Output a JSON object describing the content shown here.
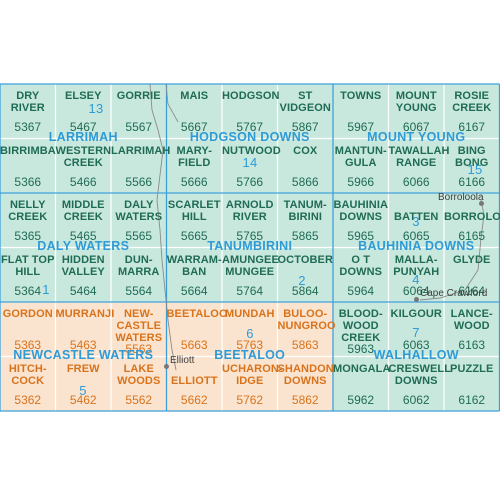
{
  "colors": {
    "teal_fill": "#c8e8de",
    "orange_fill": "#fbe4cf",
    "green_text": "#1f6b54",
    "orange_text": "#d8731c",
    "blue_text": "#2f9bd6",
    "grid_line": "#ffffff",
    "blue_line": "#3a9fd8"
  },
  "sheets": [
    {
      "row": 0,
      "col": 0,
      "lines": [
        "DRY",
        "RIVER"
      ],
      "code": "5367",
      "region": "teal"
    },
    {
      "row": 0,
      "col": 1,
      "lines": [
        "ELSEY",
        ""
      ],
      "code": "5467",
      "region": "teal"
    },
    {
      "row": 0,
      "col": 2,
      "lines": [
        "GORRIE",
        ""
      ],
      "code": "5567",
      "region": "teal"
    },
    {
      "row": 0,
      "col": 3,
      "lines": [
        "MAIS",
        ""
      ],
      "code": "5667",
      "region": "teal"
    },
    {
      "row": 0,
      "col": 4,
      "lines": [
        "HODGSON",
        ""
      ],
      "code": "5767",
      "region": "teal"
    },
    {
      "row": 0,
      "col": 5,
      "lines": [
        "ST",
        "VIDGEON"
      ],
      "code": "5867",
      "region": "teal"
    },
    {
      "row": 0,
      "col": 6,
      "lines": [
        "TOWNS",
        ""
      ],
      "code": "5967",
      "region": "teal"
    },
    {
      "row": 0,
      "col": 7,
      "lines": [
        "MOUNT",
        "YOUNG"
      ],
      "code": "6067",
      "region": "teal"
    },
    {
      "row": 0,
      "col": 8,
      "lines": [
        "ROSIE",
        "CREEK"
      ],
      "code": "6167",
      "region": "teal"
    },
    {
      "row": 1,
      "col": 0,
      "lines": [
        "BIRRIMBA",
        ""
      ],
      "code": "5366",
      "region": "teal"
    },
    {
      "row": 1,
      "col": 1,
      "lines": [
        "WESTERN",
        "CREEK"
      ],
      "code": "5466",
      "region": "teal"
    },
    {
      "row": 1,
      "col": 2,
      "lines": [
        "LARRIMAH",
        ""
      ],
      "code": "5566",
      "region": "teal"
    },
    {
      "row": 1,
      "col": 3,
      "lines": [
        "MARY-",
        "FIELD"
      ],
      "code": "5666",
      "region": "teal"
    },
    {
      "row": 1,
      "col": 4,
      "lines": [
        "NUTWOOD",
        ""
      ],
      "code": "5766",
      "region": "teal"
    },
    {
      "row": 1,
      "col": 5,
      "lines": [
        "COX",
        ""
      ],
      "code": "5866",
      "region": "teal"
    },
    {
      "row": 1,
      "col": 6,
      "lines": [
        "MANTUN-",
        "GULA"
      ],
      "code": "5966",
      "region": "teal"
    },
    {
      "row": 1,
      "col": 7,
      "lines": [
        "TAWALLAH",
        "RANGE"
      ],
      "code": "6066",
      "region": "teal"
    },
    {
      "row": 1,
      "col": 8,
      "lines": [
        "BING",
        "BONG"
      ],
      "code": "6166",
      "region": "teal"
    },
    {
      "row": 2,
      "col": 0,
      "lines": [
        "NELLY",
        "CREEK"
      ],
      "code": "5365",
      "region": "teal"
    },
    {
      "row": 2,
      "col": 1,
      "lines": [
        "MIDDLE",
        "CREEK"
      ],
      "code": "5465",
      "region": "teal"
    },
    {
      "row": 2,
      "col": 2,
      "lines": [
        "DALY",
        "WATERS"
      ],
      "code": "5565",
      "region": "teal"
    },
    {
      "row": 2,
      "col": 3,
      "lines": [
        "SCARLET",
        "HILL"
      ],
      "code": "5665",
      "region": "teal"
    },
    {
      "row": 2,
      "col": 4,
      "lines": [
        "ARNOLD",
        "RIVER"
      ],
      "code": "5765",
      "region": "teal"
    },
    {
      "row": 2,
      "col": 5,
      "lines": [
        "TANUM-",
        "BIRINI"
      ],
      "code": "5865",
      "region": "teal"
    },
    {
      "row": 2,
      "col": 6,
      "lines": [
        "BAUHINIA",
        "DOWNS"
      ],
      "code": "5965",
      "region": "teal"
    },
    {
      "row": 2,
      "col": 7,
      "lines": [
        "",
        "BATTEN"
      ],
      "code": "6065",
      "region": "teal"
    },
    {
      "row": 2,
      "col": 8,
      "lines": [
        "",
        "BORROLOOLA"
      ],
      "code": "6165",
      "region": "teal"
    },
    {
      "row": 3,
      "col": 0,
      "lines": [
        "FLAT TOP",
        "HILL"
      ],
      "code": "5364",
      "region": "teal"
    },
    {
      "row": 3,
      "col": 1,
      "lines": [
        "HIDDEN",
        "VALLEY"
      ],
      "code": "5464",
      "region": "teal"
    },
    {
      "row": 3,
      "col": 2,
      "lines": [
        "DUN-",
        "MARRA"
      ],
      "code": "5564",
      "region": "teal"
    },
    {
      "row": 3,
      "col": 3,
      "lines": [
        "WARRAM-",
        "BAN"
      ],
      "code": "5664",
      "region": "teal"
    },
    {
      "row": 3,
      "col": 4,
      "lines": [
        "AMUNGEE",
        "MUNGEE"
      ],
      "code": "5764",
      "region": "teal"
    },
    {
      "row": 3,
      "col": 5,
      "lines": [
        "OCTOBER",
        ""
      ],
      "code": "5864",
      "region": "teal"
    },
    {
      "row": 3,
      "col": 6,
      "lines": [
        "O T",
        "DOWNS"
      ],
      "code": "5964",
      "region": "teal"
    },
    {
      "row": 3,
      "col": 7,
      "lines": [
        "MALLA-",
        "PUNYAH"
      ],
      "code": "6064",
      "region": "teal"
    },
    {
      "row": 3,
      "col": 8,
      "lines": [
        "GLYDE",
        ""
      ],
      "code": "6164",
      "region": "teal"
    },
    {
      "row": 4,
      "col": 0,
      "lines": [
        "GORDON",
        ""
      ],
      "code": "5363",
      "region": "orange"
    },
    {
      "row": 4,
      "col": 1,
      "lines": [
        "MURRANJI",
        ""
      ],
      "code": "5463",
      "region": "orange"
    },
    {
      "row": 4,
      "col": 2,
      "lines": [
        "NEW-",
        "CASTLE"
      ],
      "extra": "WATERS",
      "code": "5563",
      "region": "orange"
    },
    {
      "row": 4,
      "col": 3,
      "lines": [
        "BEETALOO",
        ""
      ],
      "code": "5663",
      "region": "orange"
    },
    {
      "row": 4,
      "col": 4,
      "lines": [
        "MUNDAH",
        ""
      ],
      "code": "5763",
      "region": "orange"
    },
    {
      "row": 4,
      "col": 5,
      "lines": [
        "BULOO-",
        "NUNGROO"
      ],
      "code": "5863",
      "region": "orange"
    },
    {
      "row": 4,
      "col": 6,
      "lines": [
        "BLOOD-",
        "WOOD"
      ],
      "extra": "CREEK",
      "code": "5963",
      "region": "teal"
    },
    {
      "row": 4,
      "col": 7,
      "lines": [
        "KILGOUR",
        ""
      ],
      "code": "6063",
      "region": "teal"
    },
    {
      "row": 4,
      "col": 8,
      "lines": [
        "LANCE-",
        "WOOD"
      ],
      "code": "6163",
      "region": "teal"
    },
    {
      "row": 5,
      "col": 0,
      "lines": [
        "HITCH-",
        "COCK"
      ],
      "code": "5362",
      "region": "orange"
    },
    {
      "row": 5,
      "col": 1,
      "lines": [
        "FREW",
        ""
      ],
      "code": "5462",
      "region": "orange"
    },
    {
      "row": 5,
      "col": 2,
      "lines": [
        "LAKE",
        "WOODS"
      ],
      "code": "5562",
      "region": "orange"
    },
    {
      "row": 5,
      "col": 3,
      "lines": [
        "",
        "ELLIOTT"
      ],
      "code": "5662",
      "region": "orange"
    },
    {
      "row": 5,
      "col": 4,
      "lines": [
        "UCHARON-",
        "IDGE"
      ],
      "code": "5762",
      "region": "orange"
    },
    {
      "row": 5,
      "col": 5,
      "lines": [
        "SHANDON",
        "DOWNS"
      ],
      "code": "5862",
      "region": "orange"
    },
    {
      "row": 5,
      "col": 6,
      "lines": [
        "MONGALA",
        ""
      ],
      "code": "5962",
      "region": "teal"
    },
    {
      "row": 5,
      "col": 7,
      "lines": [
        "CRESWELL",
        "DOWNS"
      ],
      "code": "6062",
      "region": "teal"
    },
    {
      "row": 5,
      "col": 8,
      "lines": [
        "PUZZLE",
        ""
      ],
      "code": "6162",
      "region": "teal"
    }
  ],
  "sheet_numbers_250k": [
    {
      "value": "13",
      "row": 0,
      "col": 1,
      "region": "teal"
    },
    {
      "value": "14",
      "row": 1,
      "col": 4,
      "region": "teal"
    },
    {
      "value": "15",
      "row": 1,
      "col": 8,
      "region": "teal"
    },
    {
      "value": "1",
      "row": 3,
      "col": 0,
      "region": "teal"
    },
    {
      "value": "2",
      "row": 3,
      "col": 5,
      "region": "teal"
    },
    {
      "value": "3",
      "row": 2,
      "col": 7,
      "region": "teal"
    },
    {
      "value": "4",
      "row": 3,
      "col": 7,
      "region": "teal"
    },
    {
      "value": "5",
      "row": 5,
      "col": 1,
      "region": "orange"
    },
    {
      "value": "6",
      "row": 4,
      "col": 4,
      "region": "orange"
    },
    {
      "value": "7",
      "row": 4,
      "col": 7,
      "region": "teal"
    }
  ],
  "area_labels": [
    {
      "text": "LARRIMAH",
      "colcenter": 1,
      "rowline": 1
    },
    {
      "text": "HODGSON DOWNS",
      "colcenter": 4,
      "rowline": 1
    },
    {
      "text": "MOUNT YOUNG",
      "colcenter": 7,
      "rowline": 1
    },
    {
      "text": "DALY WATERS",
      "colcenter": 1,
      "rowline": 3
    },
    {
      "text": "TANUMBIRINI",
      "colcenter": 4,
      "rowline": 3
    },
    {
      "text": "BAUHINIA DOWNS",
      "colcenter": 7,
      "rowline": 3
    },
    {
      "text": "NEWCASTLE WATERS",
      "colcenter": 1,
      "rowline": 5
    },
    {
      "text": "BEETALOO",
      "colcenter": 4,
      "rowline": 5
    },
    {
      "text": "WALHALLOW",
      "colcenter": 7,
      "rowline": 5
    }
  ],
  "towns": [
    {
      "name": "Borroloola"
    },
    {
      "name": "Cape Crawford"
    },
    {
      "name": "Elliott"
    }
  ]
}
